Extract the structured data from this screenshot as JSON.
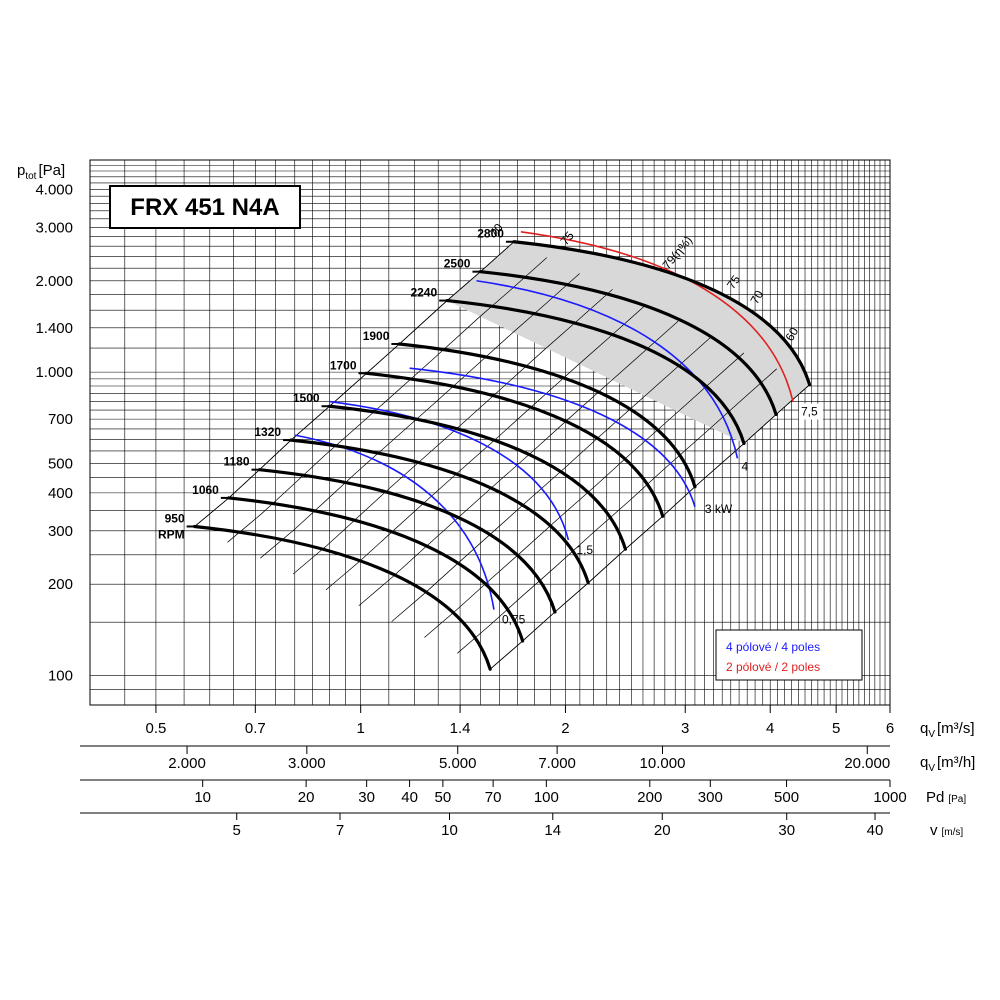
{
  "chart_data": {
    "type": "line",
    "title": "FRX 451 N4A",
    "yaxis": {
      "label": "p",
      "label_sub": "tot",
      "label_unit": "[Pa]",
      "scale": "log",
      "ylim": [
        80,
        5000
      ],
      "ticks": [
        {
          "v": 4000,
          "label": "4.000"
        },
        {
          "v": 3000,
          "label": "3.000"
        },
        {
          "v": 2000,
          "label": "2.000"
        },
        {
          "v": 1400,
          "label": "1.400"
        },
        {
          "v": 1000,
          "label": "1.000"
        },
        {
          "v": 700,
          "label": "700"
        },
        {
          "v": 500,
          "label": "500"
        },
        {
          "v": 400,
          "label": "400"
        },
        {
          "v": 300,
          "label": "300"
        },
        {
          "v": 200,
          "label": "200"
        },
        {
          "v": 100,
          "label": "100"
        }
      ]
    },
    "xaxis": {
      "label": "q",
      "label_sub": "V",
      "label_unit": "[m³/s]",
      "scale": "log",
      "xlim": [
        0.4,
        6
      ],
      "ticks": [
        {
          "v": 0.5,
          "label": "0.5"
        },
        {
          "v": 0.7,
          "label": "0.7"
        },
        {
          "v": 1,
          "label": "1"
        },
        {
          "v": 1.4,
          "label": "1.4"
        },
        {
          "v": 2,
          "label": "2"
        },
        {
          "v": 3,
          "label": "3"
        },
        {
          "v": 4,
          "label": "4"
        },
        {
          "v": 5,
          "label": "5"
        },
        {
          "v": 6,
          "label": "6"
        }
      ]
    },
    "secondary_axes": [
      {
        "name": "flow_m3h",
        "label": "q",
        "label_sub": "V",
        "unit": "[m³/h]",
        "ticks": [
          {
            "v": 2000,
            "label": "2.000"
          },
          {
            "v": 3000,
            "label": "3.000"
          },
          {
            "v": 5000,
            "label": "5.000"
          },
          {
            "v": 7000,
            "label": "7.000"
          },
          {
            "v": 10000,
            "label": "10.000"
          },
          {
            "v": 20000,
            "label": "20.000"
          }
        ]
      },
      {
        "name": "dynamic_pressure",
        "label": "Pd",
        "label_sub": "",
        "unit": "[Pa]",
        "ticks": [
          {
            "v": 10,
            "label": "10"
          },
          {
            "v": 20,
            "label": "20"
          },
          {
            "v": 30,
            "label": "30"
          },
          {
            "v": 40,
            "label": "40"
          },
          {
            "v": 50,
            "label": "50"
          },
          {
            "v": 70,
            "label": "70"
          },
          {
            "v": 100,
            "label": "100"
          },
          {
            "v": 200,
            "label": "200"
          },
          {
            "v": 300,
            "label": "300"
          },
          {
            "v": 500,
            "label": "500"
          },
          {
            "v": 1000,
            "label": "1000"
          }
        ]
      },
      {
        "name": "velocity",
        "label": "v",
        "label_sub": "",
        "unit": "[m/s]",
        "ticks": [
          {
            "v": 5,
            "label": "5"
          },
          {
            "v": 7,
            "label": "7"
          },
          {
            "v": 10,
            "label": "10"
          },
          {
            "v": 14,
            "label": "14"
          },
          {
            "v": 20,
            "label": "20"
          },
          {
            "v": 30,
            "label": "30"
          },
          {
            "v": 40,
            "label": "40"
          }
        ]
      }
    ],
    "rpm_curves": [
      {
        "label": "950",
        "label2": "RPM",
        "q": [
          0.57,
          1.55
        ],
        "p": [
          310,
          105
        ]
      },
      {
        "label": "1060",
        "q": [
          0.64,
          1.73
        ],
        "p": [
          385,
          130
        ]
      },
      {
        "label": "1180",
        "q": [
          0.71,
          1.93
        ],
        "p": [
          477,
          162
        ]
      },
      {
        "label": "1320",
        "q": [
          0.79,
          2.16
        ],
        "p": [
          597,
          202
        ]
      },
      {
        "label": "1500",
        "q": [
          0.9,
          2.45
        ],
        "p": [
          772,
          261
        ]
      },
      {
        "label": "1700",
        "q": [
          1.02,
          2.78
        ],
        "p": [
          991,
          335
        ]
      },
      {
        "label": "1900",
        "q": [
          1.14,
          3.1
        ],
        "p": [
          1238,
          419
        ]
      },
      {
        "label": "2240",
        "q": [
          1.34,
          3.66
        ],
        "p": [
          1721,
          582
        ]
      },
      {
        "label": "2500",
        "q": [
          1.5,
          4.08
        ],
        "p": [
          2143,
          725
        ]
      },
      {
        "label": "2800",
        "q": [
          1.68,
          4.57
        ],
        "p": [
          2689,
          909
        ]
      }
    ],
    "power_curves": [
      {
        "label": "0,75",
        "color": "#1a1aff",
        "q": [
          0.8,
          1.57
        ],
        "p": [
          620,
          165
        ]
      },
      {
        "label": "1,5",
        "color": "#1a1aff",
        "q": [
          0.9,
          2.02
        ],
        "p": [
          800,
          280
        ]
      },
      {
        "label": "3 kW",
        "color": "#1a1aff",
        "q": [
          1.18,
          3.1
        ],
        "p": [
          1030,
          360
        ]
      },
      {
        "label": "4",
        "color": "#1a1aff",
        "q": [
          1.48,
          3.58
        ],
        "p": [
          2000,
          520
        ]
      },
      {
        "label": "7,5",
        "color": "#e02020",
        "q": [
          1.72,
          4.32
        ],
        "p": [
          2900,
          800
        ]
      }
    ],
    "efficiency_labels": [
      "70",
      "75",
      "79(η%)",
      "75",
      "70",
      "60"
    ],
    "legend": {
      "position": "lower-right",
      "items": [
        {
          "label": "4 pólové / 4 poles",
          "color": "#1a1aff"
        },
        {
          "label": "2 pólové / 2 poles",
          "color": "#e02020"
        }
      ]
    },
    "grid": true
  }
}
